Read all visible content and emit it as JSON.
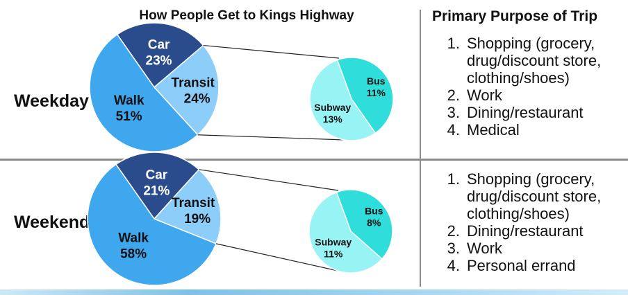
{
  "header": {
    "left_title": "How People Get to Kings Highway",
    "right_title": "Primary Purpose of Trip"
  },
  "colors": {
    "car": "#2b4c8c",
    "walk": "#3fa7ee",
    "transit": "#8ccdfa",
    "bus": "#2fddda",
    "subway": "#98f3f5",
    "edge": "#ffffff",
    "connector": "#222222"
  },
  "chart_data": [
    {
      "type": "pie",
      "row_label": "Weekday",
      "slices": [
        {
          "label": "Car",
          "value": 23,
          "value_text": "23%"
        },
        {
          "label": "Transit",
          "value": 24,
          "value_text": "24%"
        },
        {
          "label": "Walk",
          "value": 51,
          "value_text": "51%"
        }
      ],
      "transit_breakdown": [
        {
          "label": "Bus",
          "value": 11,
          "value_text": "11%"
        },
        {
          "label": "Subway",
          "value": 13,
          "value_text": "13%"
        }
      ]
    },
    {
      "type": "pie",
      "row_label": "Weekend",
      "slices": [
        {
          "label": "Car",
          "value": 21,
          "value_text": "21%"
        },
        {
          "label": "Transit",
          "value": 19,
          "value_text": "19%"
        },
        {
          "label": "Walk",
          "value": 58,
          "value_text": "58%"
        }
      ],
      "transit_breakdown": [
        {
          "label": "Bus",
          "value": 8,
          "value_text": "8%"
        },
        {
          "label": "Subway",
          "value": 11,
          "value_text": "11%"
        }
      ]
    }
  ],
  "purposes": [
    {
      "items": [
        {
          "num": "1.",
          "text": "Shopping (grocery, drug/discount store, clothing/shoes)"
        },
        {
          "num": "2.",
          "text": "Work"
        },
        {
          "num": "3.",
          "text": "Dining/restaurant"
        },
        {
          "num": "4.",
          "text": "Medical"
        }
      ]
    },
    {
      "items": [
        {
          "num": "1.",
          "text": "Shopping (grocery, drug/discount store, clothing/shoes)"
        },
        {
          "num": "2.",
          "text": "Dining/restaurant"
        },
        {
          "num": "3.",
          "text": "Work"
        },
        {
          "num": "4.",
          "text": "Personal errand"
        }
      ]
    }
  ]
}
